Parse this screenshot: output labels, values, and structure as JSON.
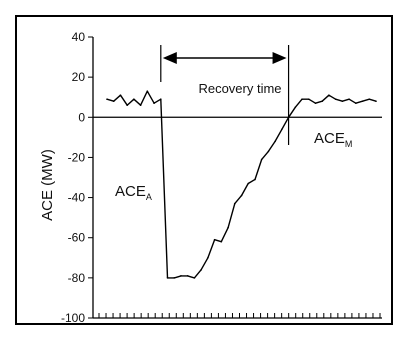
{
  "chart_data": {
    "type": "line",
    "title": "",
    "xlabel": "",
    "ylabel": "ACE (MW)",
    "ylim": [
      -100,
      40
    ],
    "yticks": [
      40,
      20,
      0,
      -20,
      -40,
      -60,
      -80,
      -100
    ],
    "ytick_labels": [
      "40",
      "20",
      "0",
      "-20",
      "-40",
      "-60",
      "-80",
      "-100"
    ],
    "grid": false,
    "x": [
      0,
      1,
      2,
      3,
      4,
      5,
      6,
      7,
      8,
      9,
      10,
      11,
      12,
      13,
      14,
      15,
      16,
      17,
      18,
      19,
      20,
      21,
      22,
      23,
      24,
      25,
      26,
      27,
      28,
      29,
      30,
      31,
      32,
      33,
      34,
      35,
      36,
      37,
      38,
      39,
      40
    ],
    "series": [
      {
        "values": [
          9,
          8,
          11,
          6,
          9,
          6,
          13,
          7,
          9,
          -80,
          -80,
          -79,
          -79,
          -80,
          -76,
          -70,
          -61,
          -62,
          -55,
          -43,
          -39,
          -33,
          -31,
          -21,
          -17,
          -12,
          -6,
          0,
          5,
          9,
          9,
          7,
          8,
          11,
          9,
          8,
          9,
          7,
          8,
          9,
          8
        ]
      }
    ],
    "annotations": {
      "recovery_label": "Recovery time",
      "ace_a_main": "ACE",
      "ace_a_sub": "A",
      "ace_m_main": "ACE",
      "ace_m_sub": "M",
      "event_start_x": 8,
      "event_end_x": 27
    }
  }
}
